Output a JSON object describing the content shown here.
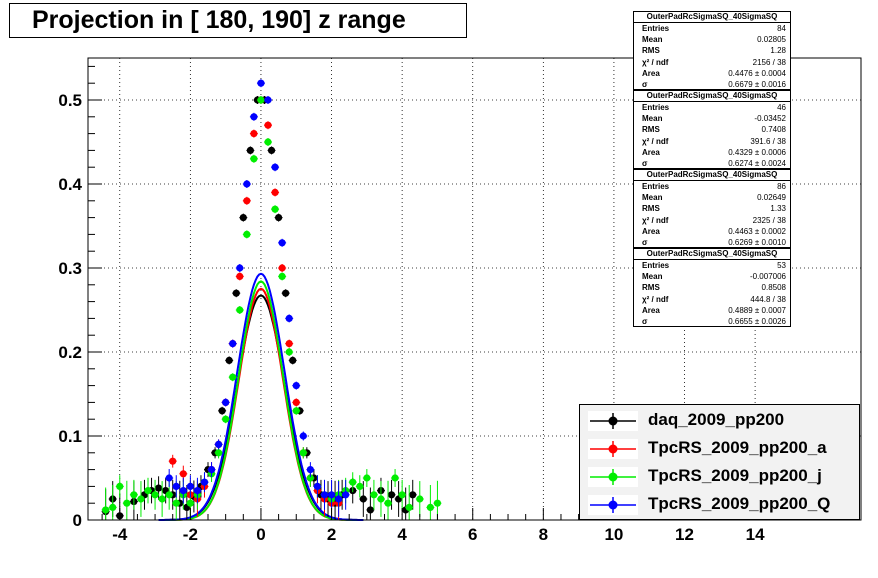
{
  "title": "Projection in [ 180, 190] z range",
  "stat_boxes": [
    {
      "name": "OuterPadRcSigmaSQ_40SigmaSQ",
      "entries": "84",
      "mean": "0.02805",
      "rms": "1.28",
      "chi2_ndf": "2156 / 38",
      "area": "0.4476 ± 0.0004",
      "sigma": "0.6679 ± 0.0016"
    },
    {
      "name": "OuterPadRcSigmaSQ_40SigmaSQ",
      "entries": "46",
      "mean": "-0.03452",
      "rms": "0.7408",
      "chi2_ndf": "391.6 / 38",
      "area": "0.4329 ± 0.0006",
      "sigma": "0.6274 ± 0.0024"
    },
    {
      "name": "OuterPadRcSigmaSQ_40SigmaSQ",
      "entries": "86",
      "mean": "0.02649",
      "rms": "1.33",
      "chi2_ndf": "2325 / 38",
      "area": "0.4463 ± 0.0002",
      "sigma": "0.6269 ± 0.0010"
    },
    {
      "name": "OuterPadRcSigmaSQ_40SigmaSQ",
      "entries": "53",
      "mean": "-0.007006",
      "rms": "0.8508",
      "chi2_ndf": "444.8 / 38",
      "area": "0.4889 ± 0.0007",
      "sigma": "0.6655 ± 0.0026"
    }
  ],
  "stat_labels": {
    "entries": "Entries",
    "mean": "Mean",
    "rms": "RMS",
    "chi2": "χ² / ndf",
    "area": "Area",
    "sigma": "σ"
  },
  "chart_data": {
    "type": "scatter",
    "xlim": [
      -4.9,
      17.0
    ],
    "ylim": [
      0,
      0.55
    ],
    "x_ticks": [
      -4,
      -2,
      0,
      2,
      4,
      6,
      8,
      10,
      12,
      14
    ],
    "y_ticks": [
      0,
      0.1,
      0.2,
      0.3,
      0.4,
      0.5
    ],
    "grid": true,
    "legend_position": "bottom-right",
    "series": [
      {
        "name": "daq_2009_pp200",
        "color": "#000000",
        "fit": {
          "area": 0.4476,
          "sigma": 0.6679
        },
        "points": [
          [
            -4.4,
            0.01
          ],
          [
            -4.2,
            0.025
          ],
          [
            -4.0,
            0.005
          ],
          [
            -3.6,
            0.022
          ],
          [
            -3.3,
            0.03
          ],
          [
            -3.1,
            0.035
          ],
          [
            -2.9,
            0.038
          ],
          [
            -2.7,
            0.035
          ],
          [
            -2.5,
            0.03
          ],
          [
            -2.3,
            0.02
          ],
          [
            -2.1,
            0.015
          ],
          [
            -1.9,
            0.028
          ],
          [
            -1.7,
            0.04
          ],
          [
            -1.5,
            0.06
          ],
          [
            -1.3,
            0.08
          ],
          [
            -1.1,
            0.13
          ],
          [
            -0.9,
            0.19
          ],
          [
            -0.7,
            0.27
          ],
          [
            -0.5,
            0.36
          ],
          [
            -0.3,
            0.44
          ],
          [
            -0.1,
            0.5
          ],
          [
            0.1,
            0.5
          ],
          [
            0.3,
            0.44
          ],
          [
            0.5,
            0.36
          ],
          [
            0.7,
            0.27
          ],
          [
            0.9,
            0.19
          ],
          [
            1.1,
            0.13
          ],
          [
            1.3,
            0.08
          ],
          [
            1.5,
            0.05
          ],
          [
            1.7,
            0.03
          ],
          [
            1.9,
            0.025
          ],
          [
            2.1,
            0.02
          ],
          [
            2.3,
            0.03
          ],
          [
            2.6,
            0.035
          ],
          [
            2.9,
            0.025
          ],
          [
            3.1,
            0.012
          ],
          [
            3.4,
            0.035
          ],
          [
            3.7,
            0.03
          ],
          [
            3.9,
            0.025
          ],
          [
            4.1,
            0.012
          ],
          [
            4.3,
            0.03
          ]
        ]
      },
      {
        "name": "TpcRS_2009_pp200_a",
        "color": "#ff0000",
        "fit": {
          "area": 0.4329,
          "sigma": 0.6274
        },
        "points": [
          [
            -2.5,
            0.07
          ],
          [
            -2.2,
            0.055
          ],
          [
            -2.0,
            0.03
          ],
          [
            -1.8,
            0.025
          ],
          [
            -1.6,
            0.04
          ],
          [
            -1.4,
            0.06
          ],
          [
            -1.2,
            0.09
          ],
          [
            -1.0,
            0.14
          ],
          [
            -0.8,
            0.21
          ],
          [
            -0.6,
            0.29
          ],
          [
            -0.4,
            0.38
          ],
          [
            -0.2,
            0.46
          ],
          [
            0.0,
            0.5
          ],
          [
            0.2,
            0.47
          ],
          [
            0.4,
            0.39
          ],
          [
            0.6,
            0.3
          ],
          [
            0.8,
            0.21
          ],
          [
            1.0,
            0.14
          ],
          [
            1.2,
            0.08
          ],
          [
            1.4,
            0.05
          ],
          [
            1.6,
            0.035
          ],
          [
            1.8,
            0.025
          ],
          [
            2.0,
            0.02
          ],
          [
            2.2,
            0.02
          ]
        ]
      },
      {
        "name": "TpcRS_2009_pp200_j",
        "color": "#00ee00",
        "fit": {
          "area": 0.4463,
          "sigma": 0.6269
        },
        "points": [
          [
            -4.4,
            0.012
          ],
          [
            -4.2,
            0.015
          ],
          [
            -4.0,
            0.04
          ],
          [
            -3.8,
            0.02
          ],
          [
            -3.6,
            0.03
          ],
          [
            -3.4,
            0.025
          ],
          [
            -3.2,
            0.035
          ],
          [
            -3.0,
            0.03
          ],
          [
            -2.8,
            0.025
          ],
          [
            -2.6,
            0.03
          ],
          [
            -2.4,
            0.02
          ],
          [
            -2.2,
            0.03
          ],
          [
            -2.0,
            0.02
          ],
          [
            -1.8,
            0.03
          ],
          [
            -1.6,
            0.045
          ],
          [
            -1.4,
            0.055
          ],
          [
            -1.2,
            0.08
          ],
          [
            -1.0,
            0.12
          ],
          [
            -0.8,
            0.17
          ],
          [
            -0.6,
            0.25
          ],
          [
            -0.4,
            0.34
          ],
          [
            -0.2,
            0.43
          ],
          [
            0.0,
            0.5
          ],
          [
            0.2,
            0.45
          ],
          [
            0.4,
            0.37
          ],
          [
            0.6,
            0.29
          ],
          [
            0.8,
            0.2
          ],
          [
            1.0,
            0.13
          ],
          [
            1.2,
            0.08
          ],
          [
            1.4,
            0.05
          ],
          [
            1.6,
            0.04
          ],
          [
            1.8,
            0.03
          ],
          [
            2.0,
            0.025
          ],
          [
            2.2,
            0.03
          ],
          [
            2.4,
            0.035
          ],
          [
            2.6,
            0.045
          ],
          [
            2.8,
            0.04
          ],
          [
            3.0,
            0.05
          ],
          [
            3.2,
            0.03
          ],
          [
            3.4,
            0.025
          ],
          [
            3.6,
            0.02
          ],
          [
            3.8,
            0.05
          ],
          [
            4.0,
            0.03
          ],
          [
            4.2,
            0.015
          ],
          [
            4.5,
            0.025
          ],
          [
            4.8,
            0.015
          ],
          [
            5.0,
            0.02
          ]
        ]
      },
      {
        "name": "TpcRS_2009_pp200_Q",
        "color": "#0000ff",
        "fit": {
          "area": 0.4889,
          "sigma": 0.6655
        },
        "points": [
          [
            -2.6,
            0.05
          ],
          [
            -2.4,
            0.04
          ],
          [
            -2.2,
            0.035
          ],
          [
            -2.0,
            0.04
          ],
          [
            -1.8,
            0.035
          ],
          [
            -1.6,
            0.045
          ],
          [
            -1.4,
            0.06
          ],
          [
            -1.2,
            0.09
          ],
          [
            -1.0,
            0.14
          ],
          [
            -0.8,
            0.21
          ],
          [
            -0.6,
            0.3
          ],
          [
            -0.4,
            0.4
          ],
          [
            -0.2,
            0.48
          ],
          [
            0.0,
            0.52
          ],
          [
            0.2,
            0.5
          ],
          [
            0.4,
            0.42
          ],
          [
            0.6,
            0.33
          ],
          [
            0.8,
            0.24
          ],
          [
            1.0,
            0.16
          ],
          [
            1.2,
            0.1
          ],
          [
            1.4,
            0.06
          ],
          [
            1.6,
            0.04
          ],
          [
            1.8,
            0.03
          ],
          [
            2.0,
            0.03
          ],
          [
            2.2,
            0.025
          ],
          [
            2.4,
            0.03
          ]
        ]
      }
    ]
  }
}
